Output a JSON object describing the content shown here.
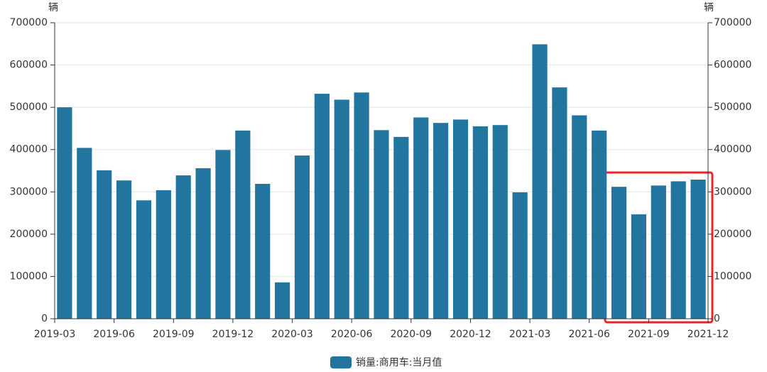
{
  "chart_data": {
    "type": "bar",
    "y_label": "辆",
    "y2_label": "辆",
    "x": [
      "2019-03",
      "2019-04",
      "2019-05",
      "2019-06",
      "2019-07",
      "2019-08",
      "2019-09",
      "2019-10",
      "2019-11",
      "2019-12",
      "2020-01",
      "2020-02",
      "2020-03",
      "2020-04",
      "2020-05",
      "2020-06",
      "2020-07",
      "2020-08",
      "2020-09",
      "2020-10",
      "2020-11",
      "2020-12",
      "2021-01",
      "2021-02",
      "2021-03",
      "2021-04",
      "2021-05",
      "2021-06",
      "2021-07",
      "2021-08",
      "2021-09",
      "2021-10",
      "2021-11"
    ],
    "series": [
      {
        "name": "销量:商用车:当月值",
        "color": "#21759f",
        "values": [
          500000,
          404000,
          351000,
          327000,
          280000,
          304000,
          339000,
          356000,
          399000,
          445000,
          319000,
          86000,
          386000,
          532000,
          518000,
          535000,
          446000,
          430000,
          476000,
          463000,
          471000,
          455000,
          458000,
          299000,
          649000,
          547000,
          481000,
          445000,
          312000,
          247000,
          315000,
          325000,
          329000
        ]
      }
    ],
    "xlim": [
      "2019-03",
      "2021-12"
    ],
    "xticks": [
      "2019-03",
      "2019-06",
      "2019-09",
      "2019-12",
      "2020-03",
      "2020-06",
      "2020-09",
      "2020-12",
      "2021-03",
      "2021-06",
      "2021-09",
      "2021-12"
    ],
    "ylim": [
      0,
      700000
    ],
    "yticks": [
      0,
      100000,
      200000,
      300000,
      400000,
      500000,
      600000,
      700000
    ],
    "y2lim": [
      0,
      700000
    ],
    "y2ticks": [
      0,
      100000,
      200000,
      300000,
      400000,
      500000,
      600000,
      700000
    ],
    "grid": true,
    "legend": "bottom"
  }
}
